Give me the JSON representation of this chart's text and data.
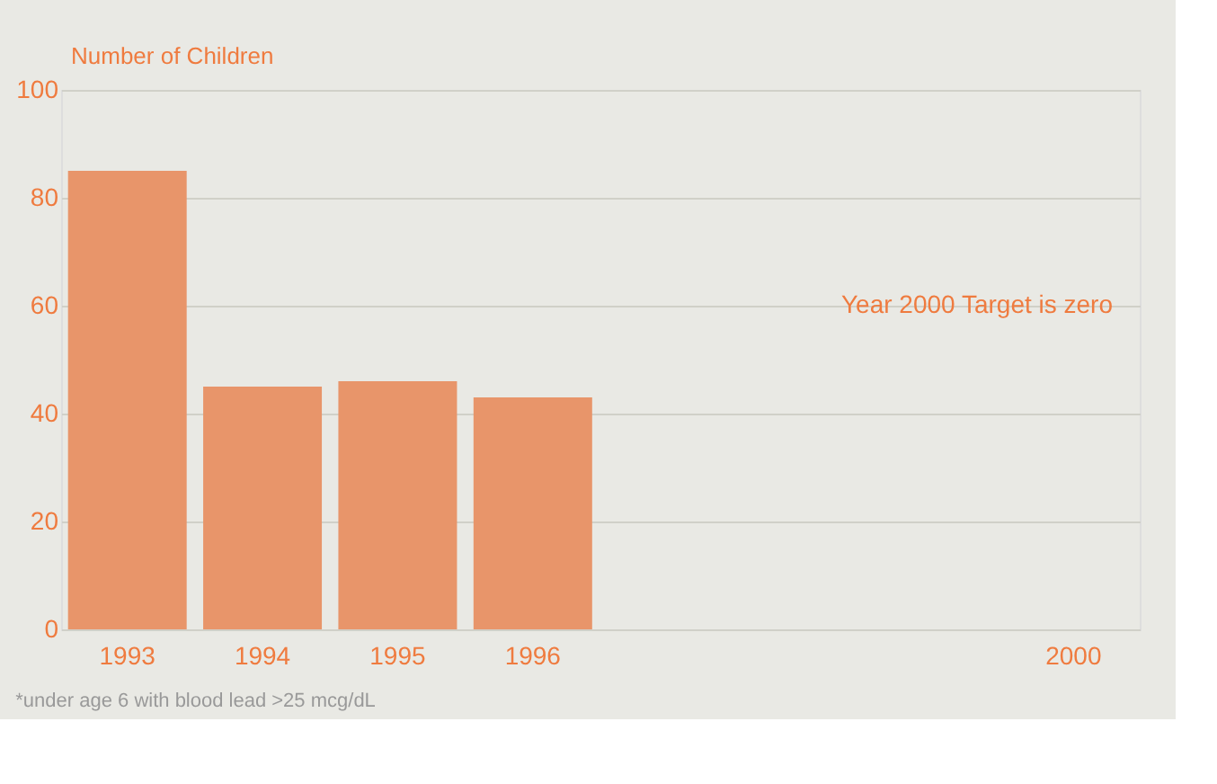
{
  "chart_data": {
    "type": "bar",
    "ylabel": "Number of Children",
    "categories": [
      "1993",
      "1994",
      "1995",
      "1996",
      null,
      null,
      null,
      "2000"
    ],
    "values": [
      85,
      45,
      46,
      43,
      null,
      null,
      null,
      null
    ],
    "color": "#e8956a",
    "ylim": [
      0,
      100
    ],
    "yticks": [
      0,
      20,
      40,
      60,
      80,
      100
    ],
    "grid": "y",
    "annotations": [
      "Year 2000 Target is zero",
      "*under age 6 with blood lead >25 mcg/dL"
    ]
  }
}
